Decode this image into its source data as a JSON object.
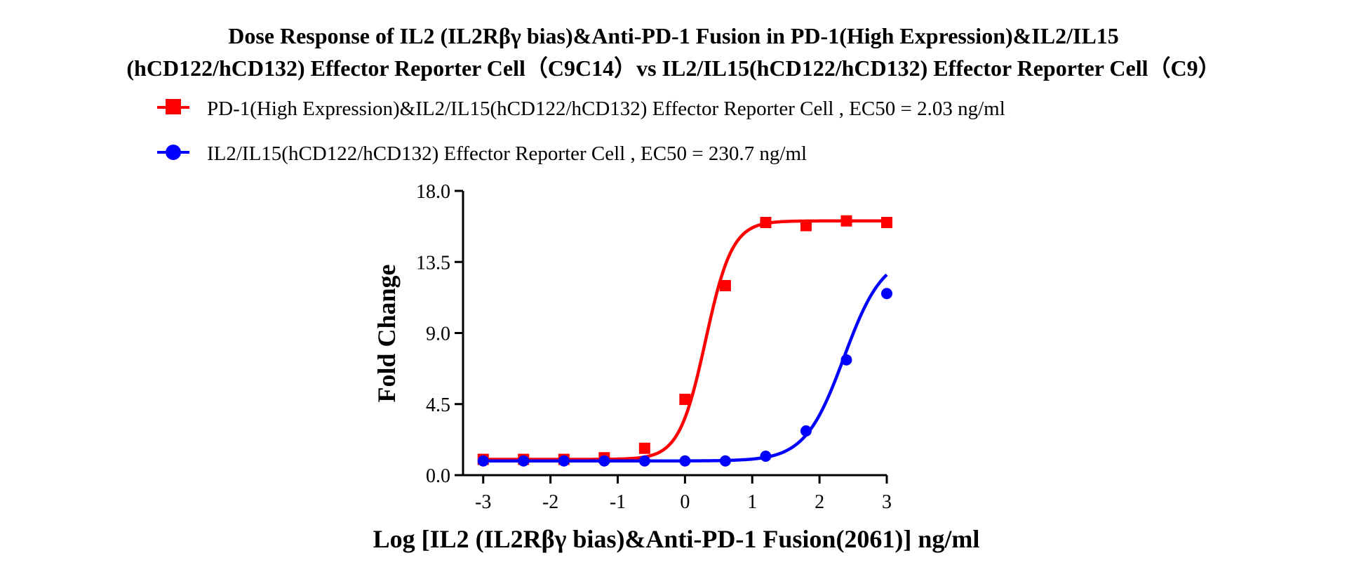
{
  "title_lines": [
    "Dose Response of IL2 (IL2Rβγ bias)&Anti-PD-1 Fusion in PD-1(High Expression)&IL2/IL15",
    "(hCD122/hCD132) Effector Reporter Cell（C9C14）vs IL2/IL15(hCD122/hCD132) Effector Reporter Cell（C9）"
  ],
  "chart_data": {
    "type": "line",
    "title": "Dose Response of IL2 (IL2Rβγ bias)&Anti-PD-1 Fusion in PD-1(High Expression)&IL2/IL15 (hCD122/hCD132) Effector Reporter Cell（C9C14）vs IL2/IL15(hCD122/hCD132) Effector Reporter Cell（C9）",
    "xlabel": "Log [IL2 (IL2Rβγ bias)&Anti-PD-1 Fusion(2061)] ng/ml",
    "ylabel": "Fold Change",
    "xlim": [
      -3.3,
      3
    ],
    "ylim": [
      0,
      18
    ],
    "x_ticks": [
      -3,
      -2,
      -1,
      0,
      1,
      2,
      3
    ],
    "x_tick_labels": [
      "-3",
      "-2",
      "-1",
      "0",
      "1",
      "2",
      "3"
    ],
    "y_ticks": [
      0,
      4.5,
      9,
      13.5,
      18
    ],
    "y_tick_labels": [
      "0.0",
      "4.5",
      "9.0",
      "13.5",
      "18.0"
    ],
    "grid": false,
    "legend_position": "top",
    "series": [
      {
        "name": "PD-1(High Expression)&IL2/IL15(hCD122/hCD132) Effector Reporter Cell , EC50 = 2.03 ng/ml",
        "color": "#ff0000",
        "marker": "square",
        "x": [
          -3.0,
          -2.4,
          -1.8,
          -1.2,
          -0.6,
          0.0,
          0.6,
          1.2,
          1.8,
          2.4,
          3.0
        ],
        "y": [
          1.0,
          1.0,
          1.0,
          1.1,
          1.7,
          4.8,
          12.0,
          16.0,
          15.8,
          16.1,
          16.0
        ],
        "fit": {
          "bottom": 1.0,
          "top": 16.1,
          "log_ec50": 0.307,
          "hill": 2.2
        }
      },
      {
        "name": "IL2/IL15(hCD122/hCD132) Effector Reporter Cell , EC50 = 230.7 ng/ml",
        "color": "#0000ff",
        "marker": "circle",
        "x": [
          -3.0,
          -2.4,
          -1.8,
          -1.2,
          -0.6,
          0.0,
          0.6,
          1.2,
          1.8,
          2.4,
          3.0
        ],
        "y": [
          0.9,
          0.9,
          0.9,
          0.9,
          0.9,
          0.9,
          0.9,
          1.2,
          2.8,
          7.3,
          11.5
        ],
        "fit": {
          "bottom": 0.9,
          "top": 14.0,
          "log_ec50": 2.363,
          "hill": 1.5
        }
      }
    ]
  }
}
